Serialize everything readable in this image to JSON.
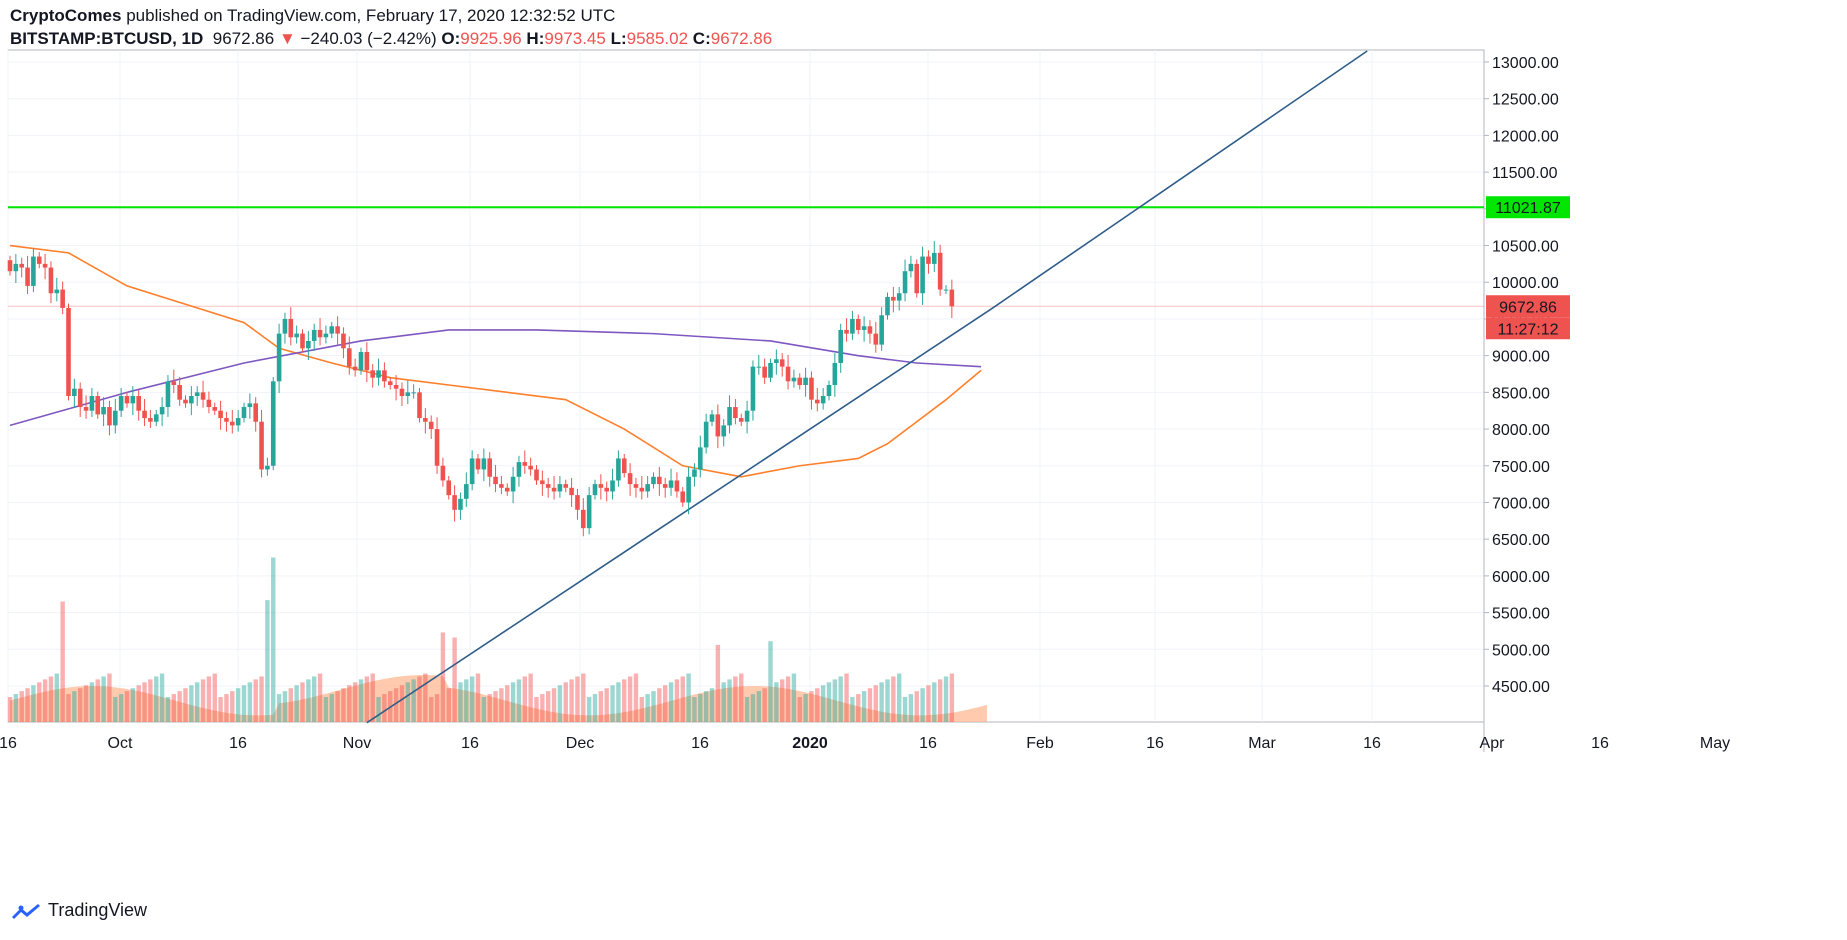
{
  "header": {
    "author": "CryptoComes",
    "published": "published on TradingView.com, February 17, 2020 12:32:52 UTC",
    "symbol": "BITSTAMP:BTCUSD, 1D",
    "last": "9672.86",
    "change_arrow": "▼",
    "change": "−240.03 (−2.42%)",
    "o_label": "O:",
    "o": "9925.96",
    "h_label": "H:",
    "h": "9973.45",
    "l_label": "L:",
    "l": "9585.02",
    "c_label": "C:",
    "c": "9672.86"
  },
  "footer": {
    "brand": "TradingView",
    "logo_icon": "tradingview-logo-icon"
  },
  "colors": {
    "up": "#26a69a",
    "down": "#ef5350",
    "ma_fast": "#ff7f2a",
    "ma_slow": "#7e57c2",
    "resistance": "#00e600",
    "trendline": "#2f5d8a",
    "vol_ma": "#ffb38a"
  },
  "chart_data": {
    "type": "candlestick",
    "y_range": [
      4000,
      13000
    ],
    "y_ticks": [
      "13000.00",
      "12500.00",
      "12000.00",
      "11500.00",
      "11000.00",
      "10500.00",
      "10000.00",
      "9500.00",
      "9000.00",
      "8500.00",
      "8000.00",
      "7500.00",
      "7000.00",
      "6500.00",
      "6000.00",
      "5500.00",
      "5000.00",
      "4500.00"
    ],
    "x_ticks": [
      "16",
      "Oct",
      "16",
      "Nov",
      "16",
      "Dec",
      "16",
      "2020",
      "16",
      "Feb",
      "16",
      "Mar",
      "16",
      "Apr",
      "16",
      "May"
    ],
    "resistance_level": 11021.87,
    "resistance_label": "11021.87",
    "last_price_label": "9672.86",
    "countdown_label": "11:27:12",
    "candle_start": "2019-09-16",
    "candles": [
      [
        10300,
        10150
      ],
      [
        10150,
        10250
      ],
      [
        10250,
        10200
      ],
      [
        10200,
        9950
      ],
      [
        9950,
        10350
      ],
      [
        10350,
        10250
      ],
      [
        10250,
        10200
      ],
      [
        10200,
        9850
      ],
      [
        9850,
        9900
      ],
      [
        9900,
        9650
      ],
      [
        9650,
        8450
      ],
      [
        8450,
        8550
      ],
      [
        8550,
        8300
      ],
      [
        8300,
        8250
      ],
      [
        8250,
        8450
      ],
      [
        8450,
        8200
      ],
      [
        8200,
        8300
      ],
      [
        8300,
        8050
      ],
      [
        8050,
        8250
      ],
      [
        8250,
        8450
      ],
      [
        8450,
        8350
      ],
      [
        8350,
        8450
      ],
      [
        8450,
        8250
      ],
      [
        8250,
        8150
      ],
      [
        8150,
        8100
      ],
      [
        8100,
        8200
      ],
      [
        8200,
        8300
      ],
      [
        8300,
        8650
      ],
      [
        8650,
        8600
      ],
      [
        8600,
        8400
      ],
      [
        8400,
        8350
      ],
      [
        8350,
        8450
      ],
      [
        8450,
        8500
      ],
      [
        8500,
        8400
      ],
      [
        8400,
        8300
      ],
      [
        8300,
        8250
      ],
      [
        8250,
        8150
      ],
      [
        8150,
        8100
      ],
      [
        8100,
        8050
      ],
      [
        8050,
        8150
      ],
      [
        8150,
        8300
      ],
      [
        8300,
        8350
      ],
      [
        8350,
        8100
      ],
      [
        8100,
        7450
      ],
      [
        7450,
        7500
      ],
      [
        7500,
        8650
      ],
      [
        8650,
        9300
      ],
      [
        9300,
        9500
      ],
      [
        9500,
        9250
      ],
      [
        9250,
        9300
      ],
      [
        9300,
        9100
      ],
      [
        9100,
        9200
      ],
      [
        9200,
        9350
      ],
      [
        9350,
        9250
      ],
      [
        9250,
        9300
      ],
      [
        9300,
        9400
      ],
      [
        9400,
        9300
      ],
      [
        9300,
        9100
      ],
      [
        9100,
        8850
      ],
      [
        8850,
        8800
      ],
      [
        8800,
        9050
      ],
      [
        9050,
        8800
      ],
      [
        8800,
        8700
      ],
      [
        8700,
        8800
      ],
      [
        8800,
        8650
      ],
      [
        8650,
        8600
      ],
      [
        8600,
        8550
      ],
      [
        8550,
        8450
      ],
      [
        8450,
        8500
      ],
      [
        8500,
        8500
      ],
      [
        8500,
        8150
      ],
      [
        8150,
        8100
      ],
      [
        8100,
        8000
      ],
      [
        8000,
        7500
      ],
      [
        7500,
        7300
      ],
      [
        7300,
        7100
      ],
      [
        7100,
        6900
      ],
      [
        6900,
        7050
      ],
      [
        7050,
        7250
      ],
      [
        7250,
        7600
      ],
      [
        7600,
        7450
      ],
      [
        7450,
        7600
      ],
      [
        7600,
        7350
      ],
      [
        7350,
        7250
      ],
      [
        7250,
        7200
      ],
      [
        7200,
        7150
      ],
      [
        7150,
        7350
      ],
      [
        7350,
        7550
      ],
      [
        7550,
        7500
      ],
      [
        7500,
        7450
      ],
      [
        7450,
        7300
      ],
      [
        7300,
        7250
      ],
      [
        7250,
        7200
      ],
      [
        7200,
        7150
      ],
      [
        7150,
        7250
      ],
      [
        7250,
        7200
      ],
      [
        7200,
        7100
      ],
      [
        7100,
        6900
      ],
      [
        6900,
        6650
      ],
      [
        6650,
        7100
      ],
      [
        7100,
        7250
      ],
      [
        7250,
        7200
      ],
      [
        7200,
        7150
      ],
      [
        7150,
        7300
      ],
      [
        7300,
        7600
      ],
      [
        7600,
        7400
      ],
      [
        7400,
        7250
      ],
      [
        7250,
        7200
      ],
      [
        7200,
        7150
      ],
      [
        7150,
        7250
      ],
      [
        7250,
        7350
      ],
      [
        7350,
        7250
      ],
      [
        7250,
        7200
      ],
      [
        7200,
        7300
      ],
      [
        7300,
        7150
      ],
      [
        7150,
        7000
      ],
      [
        7000,
        7350
      ],
      [
        7350,
        7450
      ],
      [
        7450,
        7750
      ],
      [
        7750,
        8100
      ],
      [
        8100,
        8200
      ],
      [
        8200,
        7900
      ],
      [
        7900,
        8050
      ],
      [
        8050,
        8300
      ],
      [
        8300,
        8150
      ],
      [
        8150,
        8100
      ],
      [
        8100,
        8250
      ],
      [
        8250,
        8850
      ],
      [
        8850,
        8850
      ],
      [
        8850,
        8700
      ],
      [
        8700,
        8900
      ],
      [
        8900,
        8950
      ],
      [
        8950,
        8850
      ],
      [
        8850,
        8650
      ],
      [
        8650,
        8700
      ],
      [
        8700,
        8600
      ],
      [
        8600,
        8700
      ],
      [
        8700,
        8400
      ],
      [
        8400,
        8350
      ],
      [
        8350,
        8450
      ],
      [
        8450,
        8600
      ],
      [
        8600,
        8900
      ],
      [
        8900,
        9350
      ],
      [
        9350,
        9300
      ],
      [
        9300,
        9500
      ],
      [
        9500,
        9350
      ],
      [
        9350,
        9400
      ],
      [
        9400,
        9300
      ],
      [
        9300,
        9150
      ],
      [
        9150,
        9550
      ],
      [
        9550,
        9800
      ],
      [
        9800,
        9750
      ],
      [
        9750,
        9850
      ],
      [
        9850,
        10150
      ],
      [
        10150,
        10250
      ],
      [
        10250,
        9850
      ],
      [
        9850,
        10350
      ],
      [
        10350,
        10250
      ],
      [
        10250,
        10400
      ],
      [
        10400,
        9900
      ],
      [
        9900,
        9900
      ],
      [
        9900,
        9673
      ]
    ],
    "series": [
      {
        "name": "",
        "type": "line",
        "color": "#ff7f2a",
        "points": [
          [
            0,
            10500
          ],
          [
            10,
            10400
          ],
          [
            20,
            9950
          ],
          [
            30,
            9700
          ],
          [
            40,
            9450
          ],
          [
            46,
            9100
          ],
          [
            55,
            8900
          ],
          [
            65,
            8700
          ],
          [
            75,
            8600
          ],
          [
            85,
            8500
          ],
          [
            95,
            8400
          ],
          [
            105,
            8000
          ],
          [
            115,
            7500
          ],
          [
            125,
            7350
          ],
          [
            135,
            7500
          ],
          [
            145,
            7600
          ],
          [
            150,
            7800
          ],
          [
            155,
            8100
          ],
          [
            160,
            8400
          ],
          [
            166,
            8800
          ]
        ]
      },
      {
        "name": "",
        "type": "line",
        "color": "#7e57c2",
        "points": [
          [
            0,
            8050
          ],
          [
            20,
            8500
          ],
          [
            40,
            8900
          ],
          [
            60,
            9200
          ],
          [
            75,
            9350
          ],
          [
            90,
            9350
          ],
          [
            110,
            9300
          ],
          [
            130,
            9200
          ],
          [
            145,
            9000
          ],
          [
            155,
            8900
          ],
          [
            166,
            8850
          ]
        ]
      },
      {
        "name": "",
        "type": "line",
        "color": "#2f5d8a",
        "points": [
          [
            61,
            4000
          ],
          [
            168,
            9650
          ],
          [
            232,
            13150
          ]
        ]
      }
    ]
  }
}
